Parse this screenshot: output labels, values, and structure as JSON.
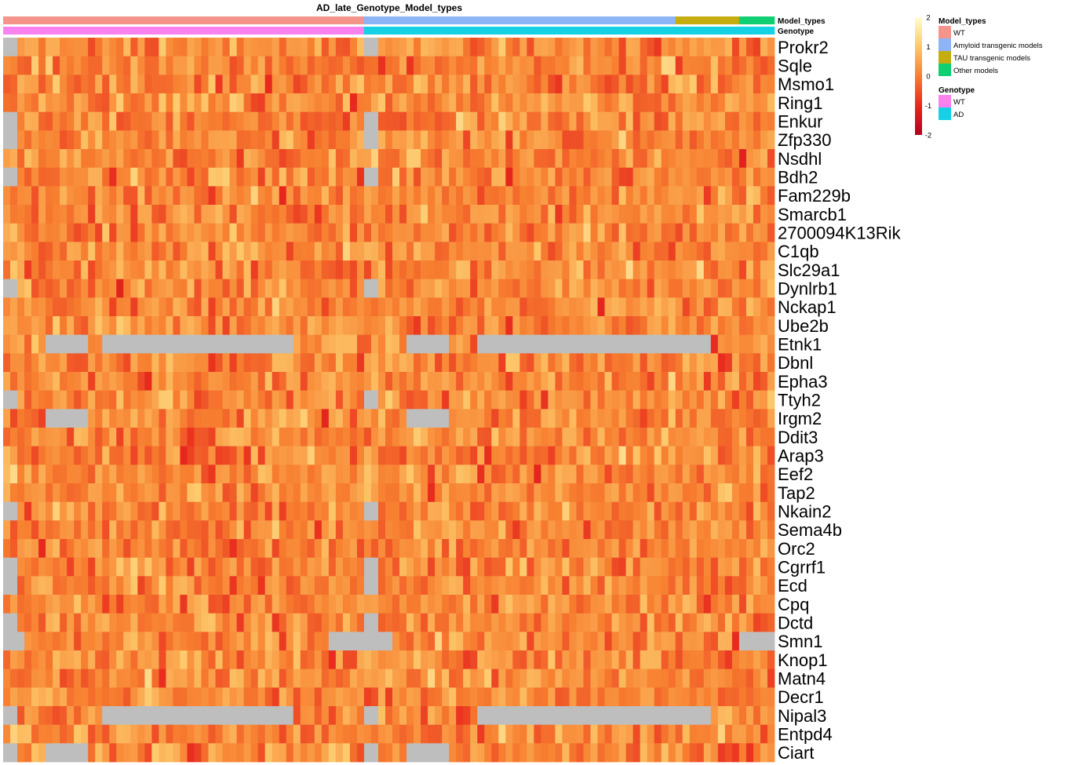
{
  "chart_data": {
    "type": "heatmap",
    "title": "AD_late_Genotype_Model_types",
    "n_columns": 109,
    "rows": [
      "Prokr2",
      "Sqle",
      "Msmo1",
      "Ring1",
      "Enkur",
      "Zfp330",
      "Nsdhl",
      "Bdh2",
      "Fam229b",
      "Smarcb1",
      "2700094K13Rik",
      "C1qb",
      "Slc29a1",
      "Dynlrb1",
      "Nckap1",
      "Ube2b",
      "Etnk1",
      "Dbnl",
      "Epha3",
      "Ttyh2",
      "Irgm2",
      "Ddit3",
      "Arap3",
      "Eef2",
      "Tap2",
      "Nkain2",
      "Sema4b",
      "Orc2",
      "Cgrrf1",
      "Ecd",
      "Cpq",
      "Dctd",
      "Smn1",
      "Knop1",
      "Matn4",
      "Decr1",
      "Nipal3",
      "Entpd4",
      "Ciart"
    ],
    "color_scale": {
      "min": -2,
      "max": 2,
      "ticks": [
        2,
        1,
        0,
        -1,
        -2
      ],
      "stops": [
        {
          "value": -2,
          "color": "#b4001e"
        },
        {
          "value": -1,
          "color": "#e8281e"
        },
        {
          "value": 0,
          "color": "#f77f30"
        },
        {
          "value": 1,
          "color": "#fdc86a"
        },
        {
          "value": 2,
          "color": "#ffffcc"
        }
      ],
      "na_color": "#bebebe"
    },
    "column_annotations": [
      {
        "name": "Model_types",
        "segments": [
          {
            "label": "WT",
            "count": 51,
            "color": "#f4948a"
          },
          {
            "label": "Amyloid transgenic models",
            "count": 44,
            "color": "#8db5f6"
          },
          {
            "label": "TAU transgenic models",
            "count": 9,
            "color": "#c5ad10"
          },
          {
            "label": "Other models",
            "count": 5,
            "color": "#10cf72"
          }
        ]
      },
      {
        "name": "Genotype",
        "segments": [
          {
            "label": "WT",
            "count": 51,
            "color": "#fa82ee"
          },
          {
            "label": "AD",
            "count": 58,
            "color": "#14d2e4"
          }
        ]
      }
    ],
    "na_blocks": [
      {
        "rows": [
          0,
          4,
          5,
          7,
          13,
          19,
          25,
          28,
          29,
          31,
          32,
          36,
          38
        ],
        "cols": [
          0,
          1
        ]
      },
      {
        "rows": [
          0,
          4,
          5,
          7,
          13,
          19,
          25,
          28,
          29,
          31,
          32,
          36,
          38
        ],
        "cols": [
          51,
          52
        ]
      },
      {
        "rows": [
          16,
          20,
          38
        ],
        "cols": [
          6,
          7,
          8,
          9,
          10,
          11
        ]
      },
      {
        "rows": [
          16,
          36
        ],
        "cols": [
          14,
          15,
          16,
          17,
          18,
          19,
          20,
          21,
          22,
          23,
          24,
          25,
          26,
          27,
          28,
          29,
          30,
          31,
          32,
          33,
          34,
          35,
          36,
          37,
          38,
          39,
          40
        ]
      },
      {
        "rows": [
          16,
          20,
          38
        ],
        "cols": [
          57,
          58,
          59,
          60,
          61,
          62
        ]
      },
      {
        "rows": [
          16,
          36
        ],
        "cols": [
          67,
          68,
          69,
          70,
          71,
          72,
          73,
          74,
          75,
          76,
          77,
          78,
          79,
          80,
          81,
          82,
          83,
          84,
          85,
          86,
          87,
          88,
          89,
          90,
          91,
          92,
          93,
          94,
          95,
          96,
          97,
          98,
          99
        ]
      },
      {
        "rows": [
          32
        ],
        "cols": [
          2
        ]
      },
      {
        "rows": [
          32
        ],
        "cols": [
          46,
          47,
          48,
          49,
          50
        ]
      },
      {
        "rows": [
          32
        ],
        "cols": [
          53,
          54
        ]
      },
      {
        "rows": [
          32
        ],
        "cols": [
          104,
          105,
          106,
          107,
          108
        ]
      }
    ],
    "legend": {
      "placement": "right"
    }
  }
}
